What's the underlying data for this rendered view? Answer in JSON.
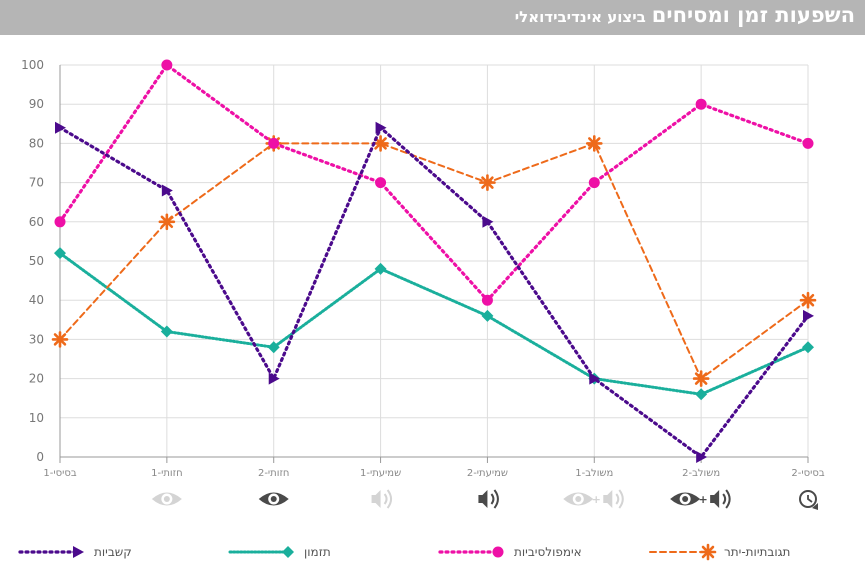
{
  "header": {
    "title": "השפעות זמן ומסיחים",
    "subtitle": "ביצוע אינדיבידואלי"
  },
  "chart_data": {
    "type": "line",
    "categories": [
      "בסיסי-1",
      "חזותי-1",
      "חזותי-2",
      "שמיעתי-1",
      "שמיעתי-2",
      "משולב-1",
      "משולב-2",
      "בסיסי-2"
    ],
    "category_icons": [
      "none",
      "eye-icon-faded",
      "eye-icon",
      "speaker-icon-faded",
      "speaker-icon",
      "eye-plus-speaker-icon-faded",
      "eye-plus-speaker-icon",
      "clock-icon"
    ],
    "ylim": [
      0,
      100
    ],
    "yticks": [
      0,
      10,
      20,
      30,
      40,
      50,
      60,
      70,
      80,
      90,
      100
    ],
    "grid": true,
    "legend_position": "bottom",
    "series": [
      {
        "name": "קשביות",
        "color": "#4b0a8c",
        "marker": "triangle-right",
        "style": "dotted",
        "values": [
          84,
          68,
          20,
          84,
          60,
          20,
          0,
          36
        ]
      },
      {
        "name": "תזמון",
        "color": "#1aaf9c",
        "marker": "diamond",
        "style": "dotted-thin",
        "values": [
          52,
          32,
          28,
          48,
          36,
          20,
          16,
          28
        ]
      },
      {
        "name": "אימפולסיביות",
        "color": "#ee10a6",
        "marker": "circle",
        "style": "dotted",
        "values": [
          60,
          100,
          80,
          70,
          40,
          70,
          90,
          80
        ]
      },
      {
        "name": "תגובתיות-יתר",
        "color": "#ee6a1a",
        "marker": "asterisk",
        "style": "dashed",
        "values": [
          30,
          60,
          80,
          80,
          70,
          80,
          20,
          40
        ]
      }
    ]
  }
}
